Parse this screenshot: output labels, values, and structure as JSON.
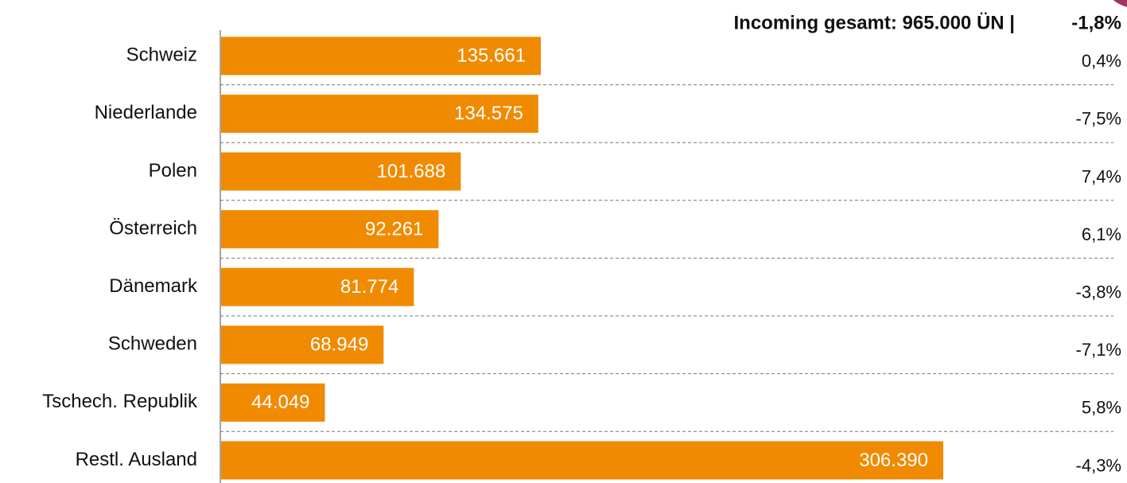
{
  "chart_data": {
    "type": "hbar",
    "title": "Incoming gesamt:  965.000 ÜN |",
    "total_change": -1.8,
    "total_change_label": "-1,8%",
    "categories": [
      "Schweiz",
      "Niederlande",
      "Polen",
      "Österreich",
      "Dänemark",
      "Schweden",
      "Tschech. Republik",
      "Restl. Ausland"
    ],
    "values": [
      135661,
      134575,
      101688,
      92261,
      81774,
      68949,
      44049,
      306390
    ],
    "value_labels": [
      "135.661",
      "134.575",
      "101.688",
      "92.261",
      "81.774",
      "68.949",
      "44.049",
      "306.390"
    ],
    "changes": [
      0.4,
      -7.5,
      7.4,
      6.1,
      -3.8,
      -7.1,
      5.8,
      -4.3
    ],
    "change_labels": [
      "0,4%",
      "-7,5%",
      "7,4%",
      "6,1%",
      "-3,8%",
      "-7,1%",
      "5,8%",
      "-4,3%"
    ],
    "color": "#f08a00"
  }
}
